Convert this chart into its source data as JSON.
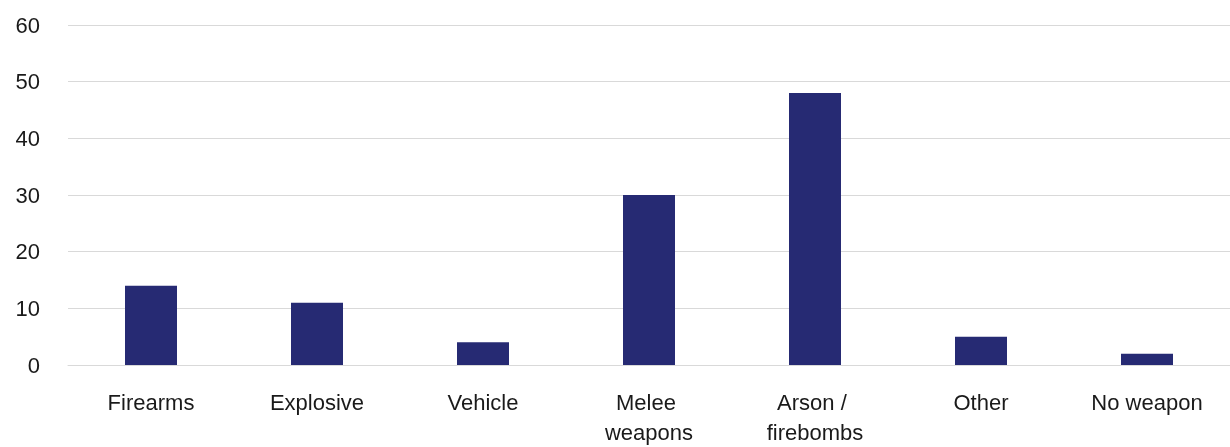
{
  "chart_data": {
    "type": "bar",
    "categories": [
      "Firearms",
      "Explosive",
      "Vehicle",
      "Melee weapons",
      "Arson / firebombs",
      "Other",
      "No weapon"
    ],
    "values": [
      14,
      11,
      4,
      30,
      48,
      5,
      2
    ],
    "color": "#262a73",
    "ylim": [
      0,
      60
    ],
    "yticks": [
      0,
      10,
      20,
      30,
      40,
      50,
      60
    ],
    "grid": "y"
  }
}
